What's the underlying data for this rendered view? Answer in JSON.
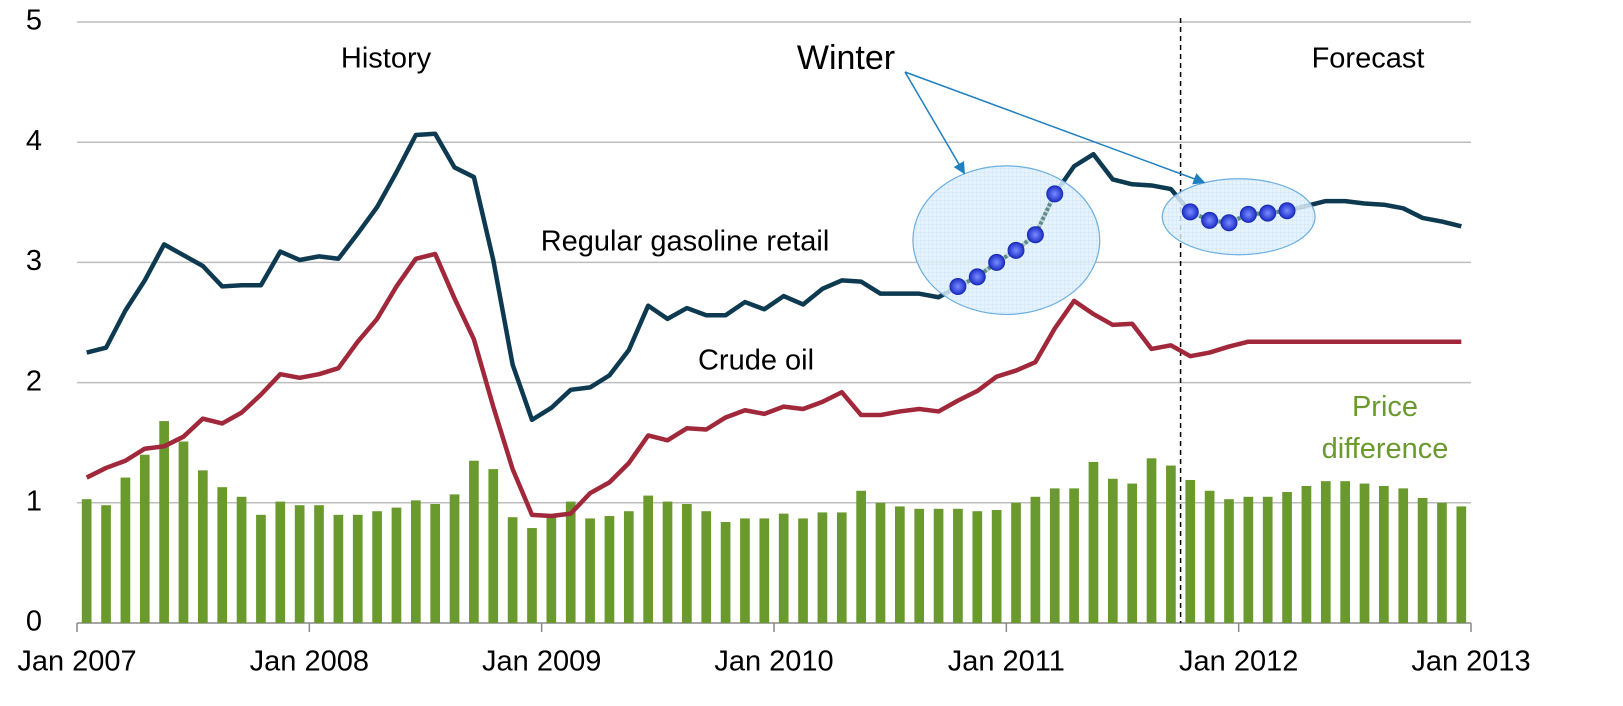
{
  "chart_data": {
    "type": "line",
    "x": [
      "2007-01",
      "2007-02",
      "2007-03",
      "2007-04",
      "2007-05",
      "2007-06",
      "2007-07",
      "2007-08",
      "2007-09",
      "2007-10",
      "2007-11",
      "2007-12",
      "2008-01",
      "2008-02",
      "2008-03",
      "2008-04",
      "2008-05",
      "2008-06",
      "2008-07",
      "2008-08",
      "2008-09",
      "2008-10",
      "2008-11",
      "2008-12",
      "2009-01",
      "2009-02",
      "2009-03",
      "2009-04",
      "2009-05",
      "2009-06",
      "2009-07",
      "2009-08",
      "2009-09",
      "2009-10",
      "2009-11",
      "2009-12",
      "2010-01",
      "2010-02",
      "2010-03",
      "2010-04",
      "2010-05",
      "2010-06",
      "2010-07",
      "2010-08",
      "2010-09",
      "2010-10",
      "2010-11",
      "2010-12",
      "2011-01",
      "2011-02",
      "2011-03",
      "2011-04",
      "2011-05",
      "2011-06",
      "2011-07",
      "2011-08",
      "2011-09",
      "2011-10",
      "2011-11",
      "2011-12",
      "2012-01",
      "2012-02",
      "2012-03",
      "2012-04",
      "2012-05",
      "2012-06",
      "2012-07",
      "2012-08",
      "2012-09",
      "2012-10",
      "2012-11",
      "2012-12"
    ],
    "series": [
      {
        "name": "Regular gasoline retail",
        "color": "#0d3a50",
        "kind": "line",
        "values": [
          2.25,
          2.29,
          2.6,
          2.85,
          3.15,
          3.06,
          2.97,
          2.8,
          2.81,
          2.81,
          3.09,
          3.02,
          3.05,
          3.03,
          3.24,
          3.46,
          3.75,
          4.06,
          4.07,
          3.79,
          3.71,
          3.02,
          2.15,
          1.69,
          1.79,
          1.94,
          1.96,
          2.06,
          2.27,
          2.64,
          2.53,
          2.62,
          2.56,
          2.56,
          2.67,
          2.61,
          2.72,
          2.65,
          2.78,
          2.85,
          2.84,
          2.74,
          2.74,
          2.74,
          2.71,
          2.8,
          2.88,
          3.0,
          3.1,
          3.23,
          3.57,
          3.8,
          3.9,
          3.69,
          3.65,
          3.64,
          3.61,
          3.42,
          3.35,
          3.33,
          3.4,
          3.41,
          3.43,
          3.47,
          3.51,
          3.51,
          3.49,
          3.48,
          3.45,
          3.37,
          3.34,
          3.3
        ]
      },
      {
        "name": "Crude oil",
        "color": "#a0283a",
        "kind": "line",
        "values": [
          1.21,
          1.29,
          1.35,
          1.45,
          1.47,
          1.55,
          1.7,
          1.66,
          1.75,
          1.9,
          2.07,
          2.04,
          2.07,
          2.12,
          2.34,
          2.53,
          2.8,
          3.03,
          3.07,
          2.7,
          2.36,
          1.8,
          1.28,
          0.9,
          0.89,
          0.91,
          1.08,
          1.17,
          1.33,
          1.56,
          1.52,
          1.62,
          1.61,
          1.71,
          1.77,
          1.74,
          1.8,
          1.78,
          1.84,
          1.92,
          1.73,
          1.73,
          1.76,
          1.78,
          1.76,
          1.85,
          1.93,
          2.05,
          2.1,
          2.17,
          2.45,
          2.68,
          2.57,
          2.48,
          2.49,
          2.28,
          2.31,
          2.22,
          2.25,
          2.3,
          2.34,
          2.34,
          2.34,
          2.34,
          2.34,
          2.34,
          2.34,
          2.34,
          2.34,
          2.34,
          2.34,
          2.34
        ]
      },
      {
        "name": "Price difference",
        "color": "#6a9a2e",
        "kind": "bar",
        "values": [
          1.03,
          0.98,
          1.21,
          1.4,
          1.68,
          1.51,
          1.27,
          1.13,
          1.05,
          0.9,
          1.01,
          0.98,
          0.98,
          0.9,
          0.9,
          0.93,
          0.96,
          1.02,
          0.99,
          1.07,
          1.35,
          1.28,
          0.88,
          0.79,
          0.9,
          1.01,
          0.87,
          0.89,
          0.93,
          1.06,
          1.01,
          0.99,
          0.93,
          0.84,
          0.87,
          0.87,
          0.91,
          0.87,
          0.92,
          0.92,
          1.1,
          1.0,
          0.97,
          0.95,
          0.95,
          0.95,
          0.93,
          0.94,
          1.0,
          1.05,
          1.12,
          1.12,
          1.34,
          1.2,
          1.16,
          1.37,
          1.31,
          1.19,
          1.1,
          1.03,
          1.05,
          1.05,
          1.09,
          1.14,
          1.18,
          1.18,
          1.16,
          1.14,
          1.12,
          1.04,
          1.0,
          0.97
        ]
      }
    ],
    "xlim": [
      "2007-01",
      "2013-01"
    ],
    "xticks": [
      {
        "value": "2007-01",
        "label": "Jan 2007"
      },
      {
        "value": "2008-01",
        "label": "Jan 2008"
      },
      {
        "value": "2009-01",
        "label": "Jan 2009"
      },
      {
        "value": "2010-01",
        "label": "Jan 2010"
      },
      {
        "value": "2011-01",
        "label": "Jan 2011"
      },
      {
        "value": "2012-01",
        "label": "Jan 2012"
      },
      {
        "value": "2013-01",
        "label": "Jan 2013"
      }
    ],
    "ylim": [
      0,
      5
    ],
    "yticks": [
      0,
      1,
      2,
      3,
      4,
      5
    ],
    "grid": true,
    "forecast_start": "2011-10",
    "history_label": "History",
    "forecast_label": "Forecast",
    "winter_label": "Winter",
    "winter_color": "#1f7fbf",
    "winter_periods": [
      [
        "2010-10",
        "2011-03"
      ],
      [
        "2011-10",
        "2012-03"
      ]
    ]
  }
}
